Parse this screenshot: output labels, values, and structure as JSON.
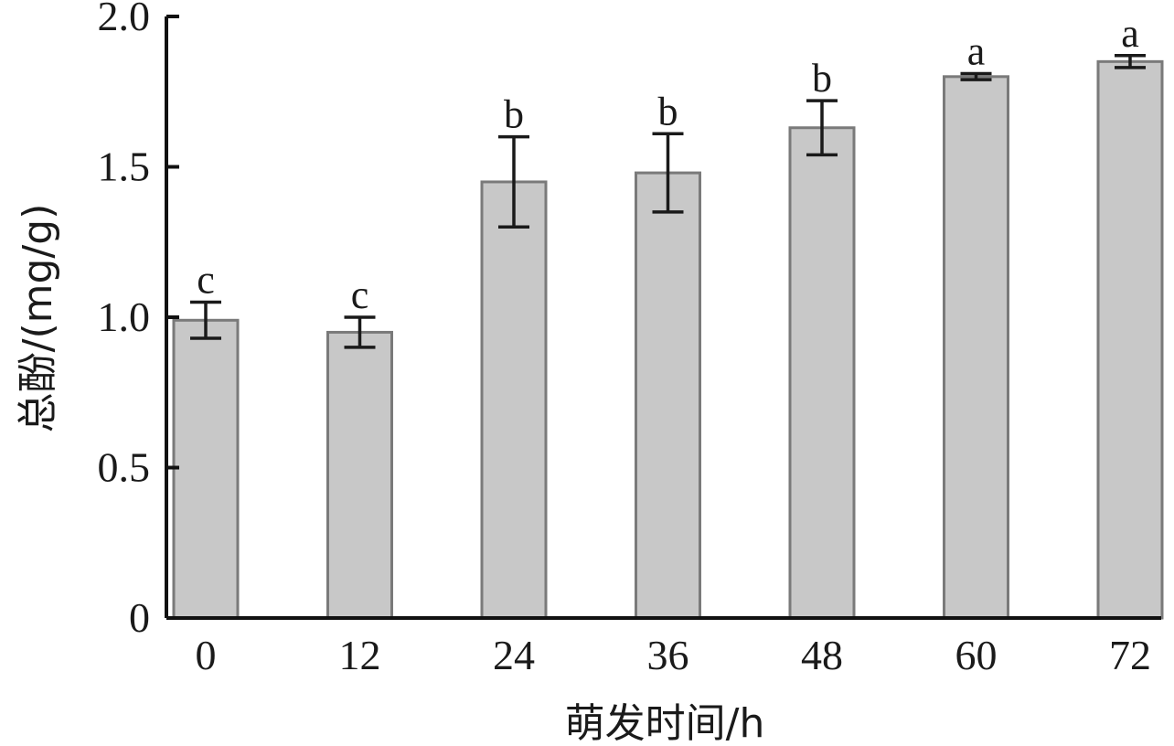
{
  "chart_data": {
    "type": "bar",
    "categories": [
      "0",
      "12",
      "24",
      "36",
      "48",
      "60",
      "72"
    ],
    "values": [
      0.99,
      0.95,
      1.45,
      1.48,
      1.63,
      1.8,
      1.85
    ],
    "errors": [
      0.06,
      0.05,
      0.15,
      0.13,
      0.09,
      0.01,
      0.02
    ],
    "significance": [
      "c",
      "c",
      "b",
      "b",
      "b",
      "a",
      "a"
    ],
    "title": "",
    "xlabel": "萌发时间/h",
    "ylabel": "总酚/(mg/g)",
    "ylim": [
      0,
      2.0
    ],
    "yticks": [
      0,
      0.5,
      1.0,
      1.5,
      2.0
    ],
    "ytick_labels": [
      "0",
      "0.5",
      "1.0",
      "1.5",
      "2.0"
    ],
    "grid": false,
    "colors": {
      "bar_fill": "#c8c8c8",
      "bar_edge": "#7a7a7a",
      "axis": "#111111",
      "text": "#1a1a1a"
    }
  }
}
